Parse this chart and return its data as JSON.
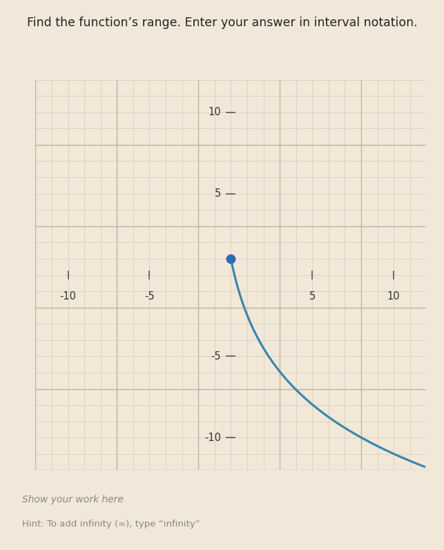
{
  "title": "Find the function’s range. Enter your answer in interval notation.",
  "subtitle_show_work": "Show your work here",
  "hint": "Hint: To add infinity (∞), type “infinity”",
  "background_color": "#f2e8d9",
  "grid_minor_color": "#d8c9b0",
  "grid_major_color": "#c4b098",
  "axis_color": "#555555",
  "curve_color": "#3a87ad",
  "dot_color": "#2b6cb0",
  "dot_x": 0,
  "dot_y": 1,
  "xlim": [
    -12,
    12
  ],
  "ylim": [
    -12,
    12
  ],
  "xticks": [
    -10,
    -5,
    5,
    10
  ],
  "yticks": [
    -10,
    -5,
    5,
    10
  ],
  "tick_labels_x": [
    "-10",
    "-5",
    "5",
    "10"
  ],
  "tick_labels_y": [
    "-10",
    "-5",
    "5",
    "10"
  ],
  "title_fontsize": 12.5,
  "tick_fontsize": 10.5
}
